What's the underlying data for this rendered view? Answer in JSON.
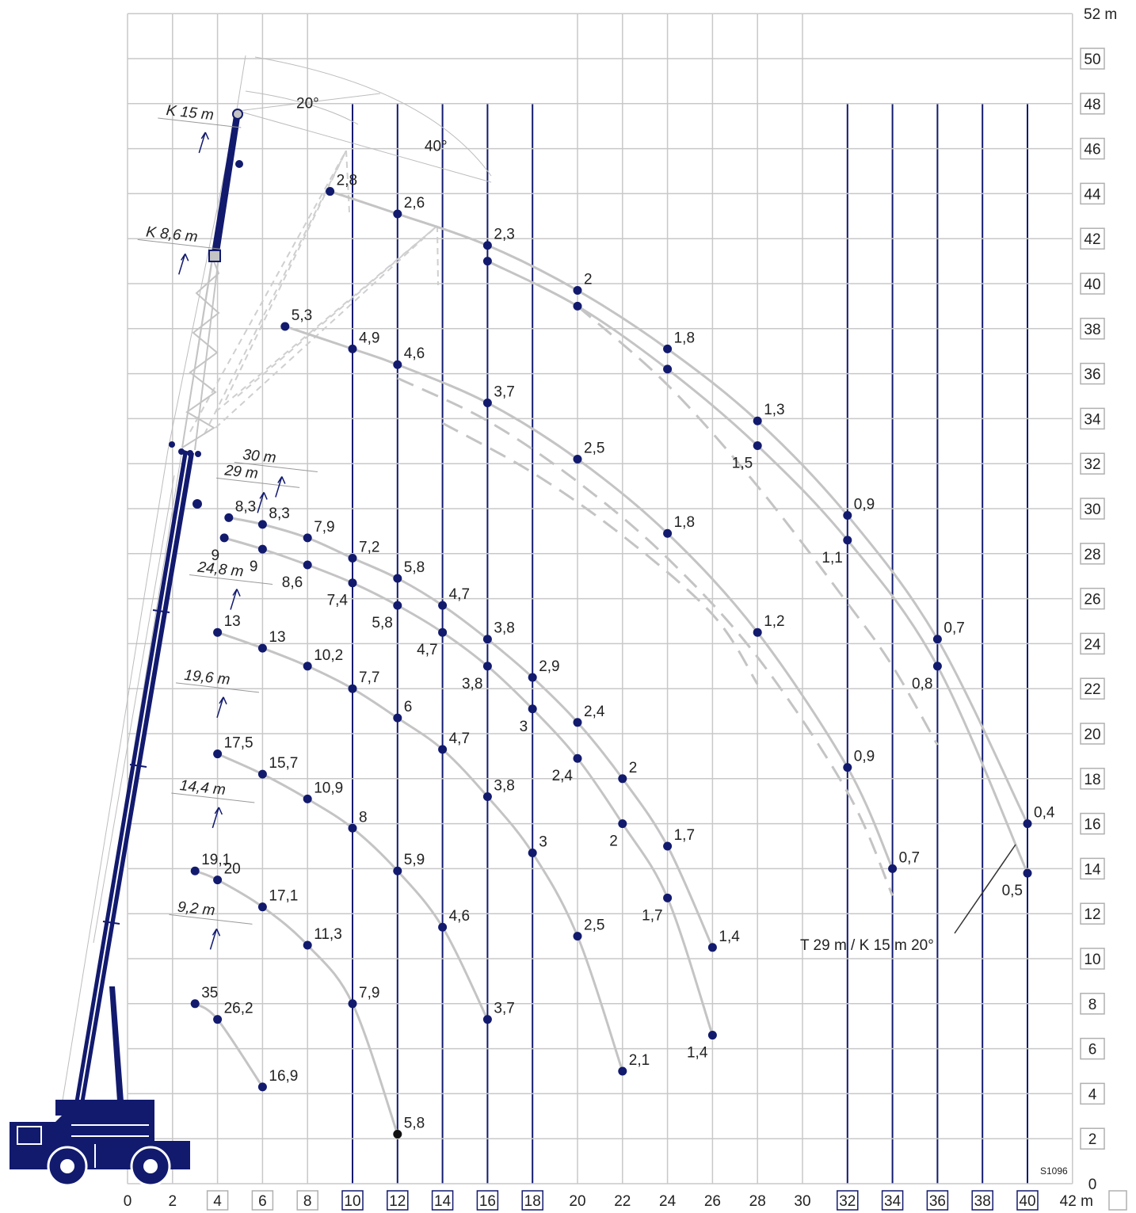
{
  "colors": {
    "grid": "#c8c8c8",
    "emph_grid": "#121a6e",
    "curve": "#c4c4c4",
    "point": "#121a6e",
    "crane": "#121a6e",
    "text": "#222222"
  },
  "icons": [
    "crane-truck-icon",
    "hook-icon",
    "arrow-icon"
  ],
  "drawing_code": "S1096",
  "chart_data": {
    "type": "line",
    "title": "",
    "xlabel": "",
    "ylabel": "",
    "xlim": [
      0,
      42
    ],
    "ylim": [
      0,
      52
    ],
    "grid": true,
    "x_unit": "m",
    "y_unit": "m",
    "x_ticks": [
      "0",
      "2",
      "4",
      "6",
      "8",
      "10",
      "12",
      "14",
      "16",
      "18",
      "20",
      "22",
      "24",
      "26",
      "28",
      "30",
      "32",
      "34",
      "36",
      "38",
      "40",
      "42"
    ],
    "y_ticks": [
      "0",
      "2",
      "4",
      "6",
      "8",
      "10",
      "12",
      "14",
      "16",
      "18",
      "20",
      "22",
      "24",
      "26",
      "28",
      "30",
      "32",
      "34",
      "36",
      "38",
      "40",
      "42",
      "44",
      "46",
      "48",
      "50",
      "52"
    ],
    "x_boxed_ticks": [
      "4",
      "6",
      "8",
      "10",
      "12",
      "14",
      "16",
      "18",
      "32",
      "34",
      "36",
      "38",
      "40"
    ],
    "y_boxed_ticks": [
      "2",
      "4",
      "6",
      "8",
      "10",
      "12",
      "14",
      "16",
      "18",
      "20",
      "22",
      "24",
      "26",
      "28",
      "30",
      "32",
      "34",
      "36",
      "38",
      "40",
      "42",
      "44",
      "46",
      "48",
      "50"
    ],
    "emphasized_x": [
      10,
      12,
      14,
      16,
      18,
      32,
      34,
      36,
      38,
      40
    ],
    "boom_lengths": [
      {
        "text": "9,2 m",
        "x": 2.2,
        "y": 12.1
      },
      {
        "text": "14,4 m",
        "x": 2.3,
        "y": 17.5
      },
      {
        "text": "19,6 m",
        "x": 2.5,
        "y": 22.4
      },
      {
        "text": "24,8 m",
        "x": 3.1,
        "y": 27.2
      },
      {
        "text": "29 m",
        "x": 4.3,
        "y": 31.5
      },
      {
        "text": "30 m",
        "x": 5.1,
        "y": 32.2
      },
      {
        "text": "K 8,6 m",
        "x": 0.8,
        "y": 42.1
      },
      {
        "text": "K 15 m",
        "x": 1.7,
        "y": 47.5
      }
    ],
    "angles": [
      {
        "text": "20°",
        "x": 7.5,
        "y": 47.8
      },
      {
        "text": "40°",
        "x": 13.2,
        "y": 45.9
      }
    ],
    "annotation": "T 29 m / K 15 m 20°",
    "series": [
      {
        "values": [
          [
            3,
            8,
            "35"
          ],
          [
            4,
            7.3,
            "26,2"
          ],
          [
            6,
            4.3,
            "16,9"
          ]
        ]
      },
      {
        "values": [
          [
            3,
            13.9,
            "19,1"
          ],
          [
            4,
            13.5,
            "20"
          ],
          [
            6,
            12.3,
            "17,1"
          ],
          [
            8,
            10.6,
            "11,3"
          ],
          [
            10,
            8,
            "7,9"
          ],
          [
            12,
            2.2,
            "5,8"
          ]
        ]
      },
      {
        "values": [
          [
            4,
            19.1,
            "17,5"
          ],
          [
            6,
            18.2,
            "15,7"
          ],
          [
            8,
            17.1,
            "10,9"
          ],
          [
            10,
            15.8,
            "8"
          ],
          [
            12,
            13.9,
            "5,9"
          ],
          [
            14,
            11.4,
            "4,6"
          ],
          [
            16,
            7.3,
            "3,7"
          ]
        ]
      },
      {
        "values": [
          [
            4,
            24.5,
            "13"
          ],
          [
            6,
            23.8,
            "13"
          ],
          [
            8,
            23,
            "10,2"
          ],
          [
            10,
            22,
            "7,7"
          ],
          [
            12,
            20.7,
            "6"
          ],
          [
            14,
            19.3,
            "4,7"
          ],
          [
            16,
            17.2,
            "3,8"
          ],
          [
            18,
            14.7,
            "3"
          ],
          [
            20,
            11,
            "2,5"
          ],
          [
            22,
            5,
            "2,1"
          ]
        ]
      },
      {
        "values": [
          [
            4.5,
            29.6,
            "8,3"
          ],
          [
            6,
            29.3,
            "8,3"
          ],
          [
            8,
            28.7,
            "7,9"
          ],
          [
            10,
            27.8,
            "7,2"
          ],
          [
            12,
            26.9,
            "5,8"
          ],
          [
            14,
            25.7,
            "4,7"
          ],
          [
            16,
            24.2,
            "3,8"
          ],
          [
            18,
            22.5,
            "2,9"
          ],
          [
            20,
            20.5,
            "2,4"
          ],
          [
            22,
            18,
            "2"
          ],
          [
            24,
            15,
            "1,7"
          ],
          [
            26,
            10.5,
            "1,4"
          ]
        ]
      },
      {
        "values": [
          [
            4.3,
            28.7,
            "9"
          ],
          [
            6,
            28.2,
            "9"
          ],
          [
            8,
            27.5,
            "8,6"
          ],
          [
            10,
            26.7,
            "7,4"
          ],
          [
            12,
            25.7,
            "5,8"
          ],
          [
            14,
            24.5,
            "4,7"
          ],
          [
            16,
            23,
            "3,8"
          ],
          [
            18,
            21.1,
            "3"
          ],
          [
            20,
            18.9,
            "2,4"
          ],
          [
            22,
            16,
            "2"
          ],
          [
            24,
            12.7,
            "1,7"
          ],
          [
            26,
            6.6,
            "1,4"
          ]
        ]
      },
      {
        "values": [
          [
            7,
            38.1,
            "5,3"
          ],
          [
            10,
            37.1,
            "4,9"
          ],
          [
            12,
            36.4,
            "4,6"
          ],
          [
            16,
            34.7,
            "3,7"
          ],
          [
            20,
            32.2,
            "2,5"
          ],
          [
            24,
            28.9,
            "1,8"
          ],
          [
            28,
            24.5,
            "1,2"
          ],
          [
            32,
            18.5,
            "0,9"
          ],
          [
            34,
            14,
            "0,7"
          ]
        ]
      },
      {
        "values": [
          [
            9,
            44.1,
            "2,8"
          ],
          [
            12,
            43.1,
            "2,6"
          ],
          [
            16,
            41.7,
            "2,3"
          ],
          [
            20,
            39.7,
            "2"
          ],
          [
            24,
            37.1,
            "1,8"
          ],
          [
            28,
            33.9,
            "1,3"
          ],
          [
            32,
            29.7,
            "0,9"
          ],
          [
            36,
            24.2,
            "0,7"
          ],
          [
            40,
            16,
            "0,4"
          ]
        ]
      },
      {
        "values": [
          [
            16,
            41,
            ""
          ],
          [
            20,
            39,
            ""
          ],
          [
            24,
            36.2,
            ""
          ],
          [
            28,
            32.8,
            "1,5"
          ],
          [
            32,
            28.6,
            "1,1"
          ],
          [
            36,
            23,
            "0,8"
          ],
          [
            40,
            13.8,
            "0,5"
          ]
        ]
      },
      {
        "values": [
          [
            12,
            35.8,
            ""
          ],
          [
            16,
            33.9,
            ""
          ],
          [
            20,
            31.2,
            ""
          ],
          [
            24,
            27.8,
            ""
          ],
          [
            28,
            23.4,
            ""
          ],
          [
            32,
            17.4,
            ""
          ],
          [
            34,
            12.8,
            ""
          ]
        ]
      },
      {
        "values": [
          [
            14,
            33.8,
            ""
          ],
          [
            18,
            31.6,
            ""
          ],
          [
            22,
            28.8,
            ""
          ],
          [
            26,
            25.3,
            ""
          ],
          [
            28,
            22.2,
            ""
          ]
        ]
      },
      {
        "values": [
          [
            20,
            39,
            ""
          ],
          [
            24,
            35.5,
            ""
          ],
          [
            28,
            31,
            ""
          ],
          [
            32,
            25.8,
            ""
          ],
          [
            34,
            23,
            ""
          ],
          [
            36,
            19.5,
            ""
          ]
        ]
      }
    ]
  }
}
